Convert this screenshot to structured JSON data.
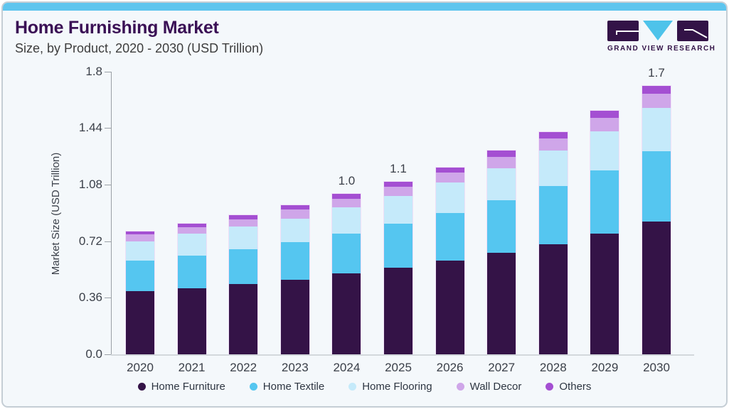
{
  "header": {
    "title": "Home Furnishing Market",
    "subtitle": "Size, by Product, 2020 - 2030 (USD Trillion)"
  },
  "logo": {
    "brand": "GRAND VIEW RESEARCH",
    "accent_color": "#4ec3ea",
    "block_color": "#331347"
  },
  "chart_data": {
    "type": "bar",
    "stacked": true,
    "title": "Home Furnishing Market Size, by Product, 2020 - 2030 (USD Trillion)",
    "ylabel": "Market Size (USD Trillion)",
    "xlabel": "",
    "ylim": [
      0,
      1.8
    ],
    "yticks": [
      0,
      0.36,
      0.72,
      1.08,
      1.44,
      1.8
    ],
    "ytick_labels": [
      "0.0",
      "0.36",
      "0.72",
      "1.08",
      "1.44",
      "1.8"
    ],
    "grid": false,
    "legend_position": "bottom",
    "categories": [
      "2020",
      "2021",
      "2022",
      "2023",
      "2024",
      "2025",
      "2026",
      "2027",
      "2028",
      "2029",
      "2030"
    ],
    "series": [
      {
        "name": "Home Furniture",
        "color": "#341347",
        "values": [
          0.4,
          0.419,
          0.446,
          0.476,
          0.515,
          0.553,
          0.597,
          0.648,
          0.702,
          0.768,
          0.847
        ]
      },
      {
        "name": "Home Textile",
        "color": "#55c6f0",
        "values": [
          0.196,
          0.209,
          0.223,
          0.239,
          0.255,
          0.278,
          0.302,
          0.331,
          0.368,
          0.402,
          0.445
        ]
      },
      {
        "name": "Home Flooring",
        "color": "#c5eafa",
        "values": [
          0.124,
          0.14,
          0.144,
          0.147,
          0.164,
          0.178,
          0.193,
          0.203,
          0.226,
          0.249,
          0.275
        ]
      },
      {
        "name": "Wall Decor",
        "color": "#cfa6e9",
        "values": [
          0.042,
          0.039,
          0.046,
          0.058,
          0.057,
          0.056,
          0.063,
          0.076,
          0.078,
          0.084,
          0.09
        ]
      },
      {
        "name": "Others",
        "color": "#a44fd2",
        "values": [
          0.022,
          0.026,
          0.028,
          0.028,
          0.029,
          0.032,
          0.035,
          0.037,
          0.04,
          0.047,
          0.05
        ]
      }
    ],
    "totals": [
      0.78,
      0.83,
      0.89,
      0.95,
      1.02,
      1.1,
      1.19,
      1.3,
      1.41,
      1.55,
      1.71
    ],
    "total_labels": {
      "2024": "1.0",
      "2025": "1.1",
      "2030": "1.7"
    }
  }
}
